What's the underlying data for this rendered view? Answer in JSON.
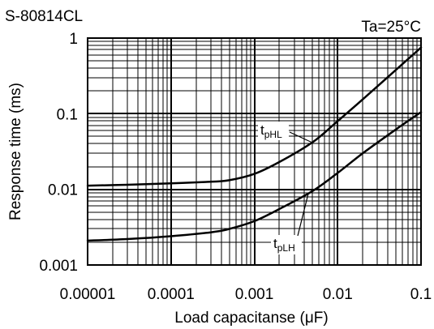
{
  "chart_data": {
    "type": "line",
    "title": "S-80814CL",
    "annotation": "Ta=25°C",
    "xlabel": "Load capacitanse (μF)",
    "ylabel": "Response time (ms)",
    "x_scale": "log",
    "y_scale": "log",
    "xlim": [
      1e-05,
      0.1
    ],
    "ylim": [
      0.001,
      1
    ],
    "x_ticks": [
      "0.00001",
      "0.0001",
      "0.001",
      "0.01",
      "0.1"
    ],
    "y_ticks": [
      "0.001",
      "0.01",
      "0.1",
      "1"
    ],
    "grid": true,
    "grid_minor": true,
    "legend": false,
    "colors": {
      "series": "#000000",
      "grid": "#000000"
    },
    "series": [
      {
        "label": "t",
        "label_sub": "pHL",
        "x": [
          1e-05,
          3e-05,
          0.0001,
          0.0003,
          0.0005,
          0.001,
          0.002,
          0.005,
          0.01,
          0.02,
          0.05,
          0.1
        ],
        "y": [
          0.0112,
          0.0115,
          0.012,
          0.0126,
          0.0132,
          0.016,
          0.023,
          0.042,
          0.08,
          0.155,
          0.38,
          0.75
        ]
      },
      {
        "label": "t",
        "label_sub": "pLH",
        "x": [
          1e-05,
          3e-05,
          0.0001,
          0.0003,
          0.0005,
          0.001,
          0.002,
          0.005,
          0.01,
          0.02,
          0.05,
          0.1
        ],
        "y": [
          0.0021,
          0.0022,
          0.0024,
          0.0027,
          0.003,
          0.0038,
          0.0055,
          0.0095,
          0.0165,
          0.03,
          0.062,
          0.105
        ]
      }
    ]
  }
}
